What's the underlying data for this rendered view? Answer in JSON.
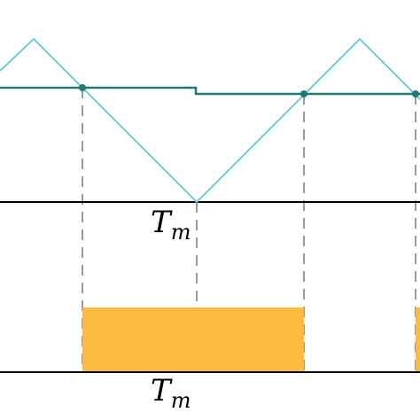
{
  "labels": {
    "top_time": {
      "main": "T",
      "subscript": "m"
    },
    "bottom_time": {
      "main": "T",
      "subscript": "m"
    }
  },
  "colors": {
    "carrier": "#70CBD6",
    "reference": "#1E7A74",
    "axis": "#000000",
    "dashed": "#9A9A9A",
    "pulse": "#FDBB3F"
  }
}
